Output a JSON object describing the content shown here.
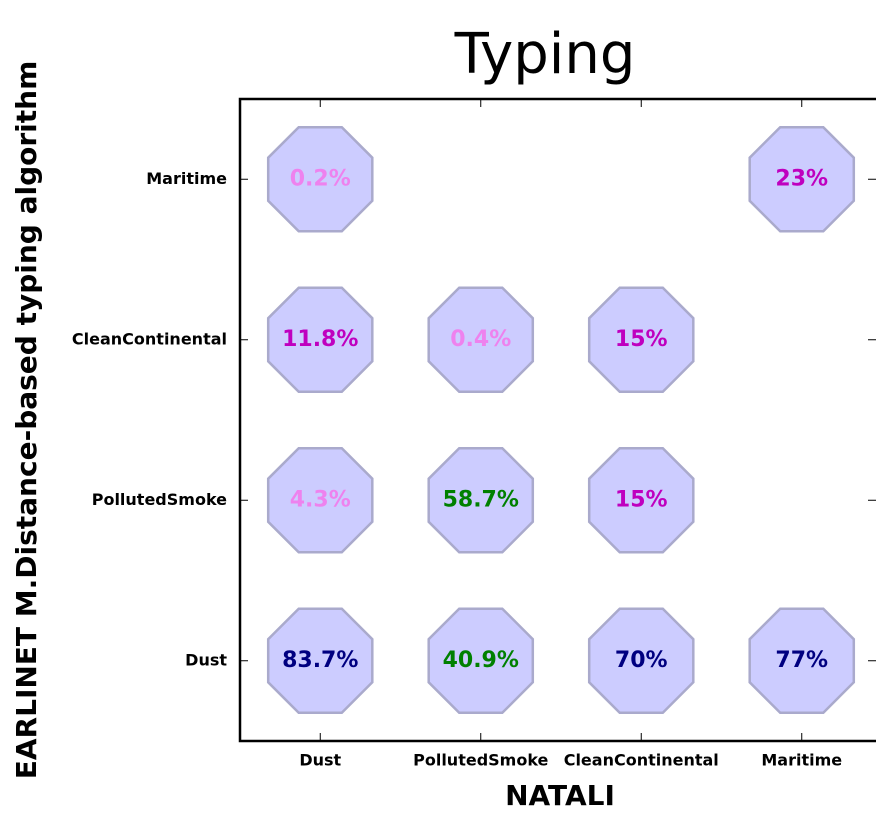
{
  "chart_data": {
    "type": "matrix",
    "title": "Typing",
    "x_label": "NATALI",
    "y_label": "EARLINET M.Distance-based typing algorithm",
    "x_categories": [
      "Dust",
      "PollutedSmoke",
      "CleanContinental",
      "Maritime"
    ],
    "y_categories": [
      "Dust",
      "PollutedSmoke",
      "CleanContinental",
      "Maritime"
    ],
    "values": [
      [
        83.7,
        40.9,
        70,
        77
      ],
      [
        4.3,
        58.7,
        15,
        null
      ],
      [
        11.8,
        0.4,
        15,
        null
      ],
      [
        0.2,
        null,
        null,
        23
      ]
    ],
    "value_labels": [
      [
        "83.7%",
        "40.9%",
        "70%",
        "77%"
      ],
      [
        "4.3%",
        "58.7%",
        "15%",
        null
      ],
      [
        "11.8%",
        "0.4%",
        "15%",
        null
      ],
      [
        "0.2%",
        null,
        null,
        "23%"
      ]
    ],
    "label_colors": [
      [
        "#000080",
        "#008000",
        "#000080",
        "#000080"
      ],
      [
        "#ee82ee",
        "#008000",
        "#bf00bf",
        null
      ],
      [
        "#bf00bf",
        "#ee82ee",
        "#bf00bf",
        null
      ],
      [
        "#ee82ee",
        null,
        null,
        "#bf00bf"
      ]
    ],
    "marker_color": "#ccccff",
    "marker_edge_color": "#aaaacc"
  }
}
